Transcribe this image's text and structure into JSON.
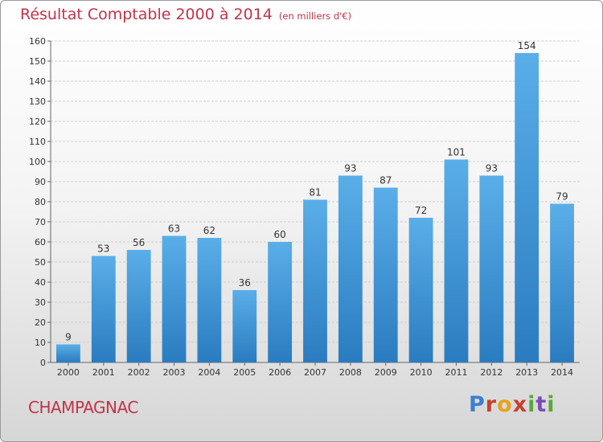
{
  "header": {
    "title": "Résultat Comptable 2000 à 2014",
    "subtitle": "(en milliers d'€)"
  },
  "footer": {
    "town": "CHAMPAGNAC",
    "brand_logo": "Proxiti"
  },
  "colors": {
    "title": "#c2334a",
    "bar_top": "#5aaee8",
    "bar_bottom": "#2a7cc0",
    "grid": "#cfcfcf"
  },
  "chart_data": {
    "type": "bar",
    "title": "Résultat Comptable 2000 à 2014",
    "subtitle": "(en milliers d'€)",
    "xlabel": "",
    "ylabel": "",
    "categories": [
      "2000",
      "2001",
      "2002",
      "2003",
      "2004",
      "2005",
      "2006",
      "2007",
      "2008",
      "2009",
      "2010",
      "2011",
      "2012",
      "2013",
      "2014"
    ],
    "values": [
      9,
      53,
      56,
      63,
      62,
      36,
      60,
      81,
      93,
      87,
      72,
      101,
      93,
      154,
      79
    ],
    "ylim": [
      0,
      160
    ],
    "yticks": [
      0,
      10,
      20,
      30,
      40,
      50,
      60,
      70,
      80,
      90,
      100,
      110,
      120,
      130,
      140,
      150,
      160
    ],
    "grid": true,
    "legend": "none"
  }
}
